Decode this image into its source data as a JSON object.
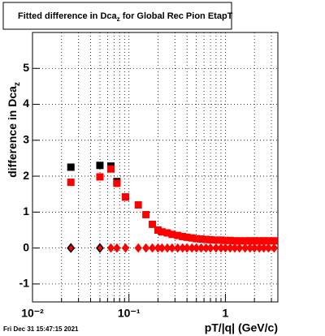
{
  "chart_data": {
    "type": "scatter",
    "title": {
      "text": "Fitted difference in Dca",
      "subscript": "z",
      "suffix": " for Global Rec Pion EtapT"
    },
    "y_label": {
      "text": "difference in Dca",
      "subscript": "z"
    },
    "x_label": "pT/|q| (GeV/c)",
    "timestamp": "Fri Dec 31 15:47:15 2021",
    "x_log": true,
    "grid": true,
    "xlim": [
      0.01,
      3.5
    ],
    "ylim": [
      -1.5,
      6
    ],
    "xticks": [
      {
        "value": 0.01,
        "label": "10⁻²"
      },
      {
        "value": 0.1,
        "label": "10⁻¹"
      },
      1
    ],
    "xminorticks": [
      0.02,
      0.03,
      0.04,
      0.05,
      0.06,
      0.07,
      0.08,
      0.09,
      0.2,
      0.3,
      0.4,
      0.5,
      0.6,
      0.7,
      0.8,
      0.9,
      2,
      3
    ],
    "yticks": [
      -1,
      0,
      1,
      2,
      3,
      4,
      5
    ],
    "series": [
      {
        "color": "#000000",
        "marker": "square",
        "x": [
          0.025,
          0.05,
          0.065,
          0.075,
          0.092
        ],
        "values": [
          2.25,
          2.3,
          2.28,
          1.85,
          1.42
        ]
      },
      {
        "color": "#ff0000",
        "marker": "square",
        "x": [
          0.025,
          0.05,
          0.065,
          0.075,
          0.092,
          0.125,
          0.15,
          0.175,
          0.2,
          0.22,
          0.25,
          0.28,
          0.32,
          0.36,
          0.4,
          0.45,
          0.5,
          0.56,
          0.63,
          0.7,
          0.8,
          0.9,
          1.0,
          1.12,
          1.25,
          1.4,
          1.6,
          1.8,
          2.0,
          2.25,
          2.5,
          2.8,
          3.2
        ],
        "values": [
          1.83,
          1.98,
          2.2,
          1.8,
          1.42,
          1.2,
          0.93,
          0.66,
          0.5,
          0.45,
          0.42,
          0.38,
          0.35,
          0.32,
          0.3,
          0.28,
          0.26,
          0.25,
          0.24,
          0.23,
          0.22,
          0.22,
          0.21,
          0.21,
          0.2,
          0.2,
          0.2,
          0.2,
          0.2,
          0.2,
          0.2,
          0.2,
          0.2
        ]
      },
      {
        "color": "#ff0000",
        "marker": "diamond",
        "x": [
          0.025,
          0.05,
          0.065,
          0.075,
          0.092,
          0.125,
          0.15,
          0.175,
          0.2,
          0.22,
          0.25,
          0.28,
          0.32,
          0.36,
          0.4,
          0.45,
          0.5,
          0.56,
          0.63,
          0.7,
          0.8,
          0.9,
          1.0,
          1.12,
          1.25,
          1.4,
          1.6,
          1.8,
          2.0,
          2.25,
          2.5,
          2.8,
          3.2
        ],
        "values": [
          0,
          0,
          0,
          0,
          0,
          0,
          0,
          0,
          0,
          0,
          0,
          0,
          0,
          0,
          0,
          0,
          0,
          0,
          0,
          0,
          0,
          0,
          0,
          0,
          0,
          0,
          0,
          0,
          0,
          0,
          0,
          0,
          0
        ]
      },
      {
        "color": "#000000",
        "marker": "diamond-open",
        "x": [
          0.025,
          0.05
        ],
        "values": [
          0,
          0
        ]
      }
    ]
  }
}
